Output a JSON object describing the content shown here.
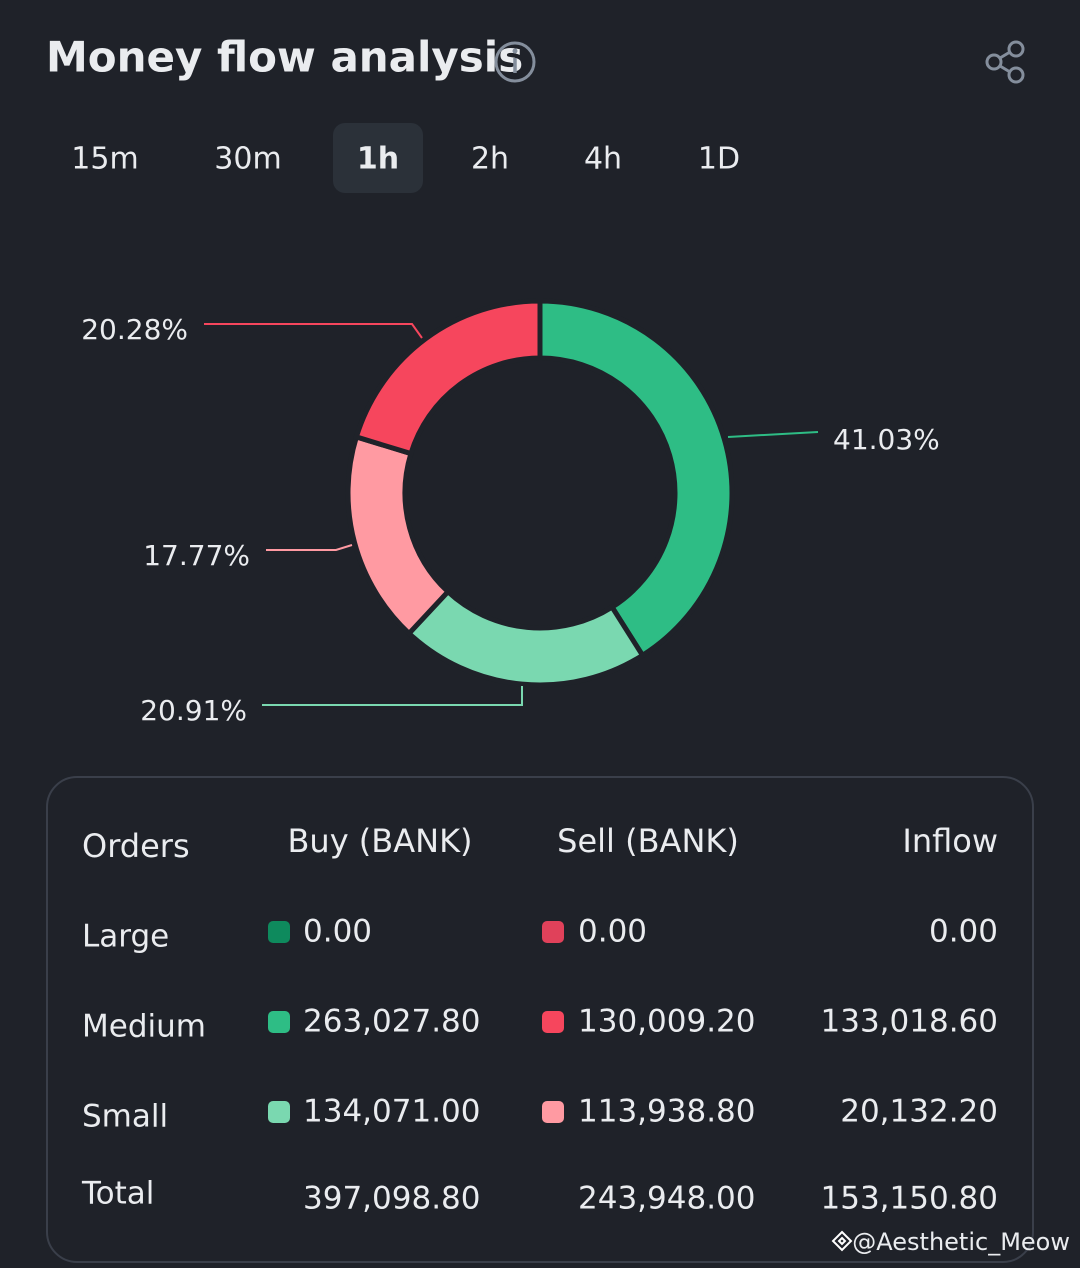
{
  "header": {
    "title": "Money flow analysis"
  },
  "tabs": {
    "items": [
      "15m",
      "30m",
      "1h",
      "2h",
      "4h",
      "1D"
    ],
    "active": 2
  },
  "chart_data": {
    "type": "donut",
    "values": [
      41.03,
      20.91,
      17.77,
      20.28
    ],
    "value_labels": [
      "41.03%",
      "20.91%",
      "17.77%",
      "20.28%"
    ],
    "colors": [
      "#2ebd85",
      "#7ad8b0",
      "#ff9aa2",
      "#f6465d"
    ]
  },
  "table": {
    "header": [
      "Orders",
      "Buy (BANK)",
      "Sell (BANK)",
      "Inflow"
    ],
    "rows": [
      [
        "Large",
        "0.00",
        "0.00",
        "0.00"
      ],
      [
        "Medium",
        "263,027.80",
        "130,009.20",
        "133,018.60"
      ],
      [
        "Small",
        "134,071.00",
        "113,938.80",
        "20,132.20"
      ],
      [
        "Total",
        "397,098.80",
        "243,948.00",
        "153,150.80"
      ]
    ],
    "buy_colors": [
      "#0e8a5d",
      "#2ebd85",
      "#7ad8b0"
    ],
    "sell_colors": [
      "#e0415a",
      "#f6465d",
      "#ff9aa2"
    ]
  },
  "watermark": "@Aesthetic_Meow"
}
